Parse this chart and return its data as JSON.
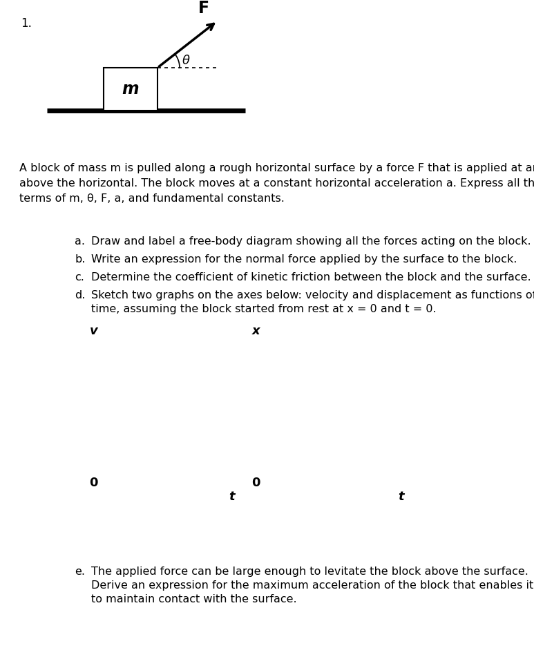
{
  "title_number": "1.",
  "bg_color": "#ffffff",
  "force_label": "F",
  "angle_label": "θ",
  "mass_label": "m",
  "para_line1": "A block of mass m is pulled along a rough horizontal surface by a force F that is applied at an angle θ",
  "para_line2": "above the horizontal. The block moves at a constant horizontal acceleration a. Express all the results in",
  "para_line3": "terms of m, θ, F, a, and fundamental constants.",
  "item_a_letter": "a.",
  "item_a_text": "Draw and label a free-body diagram showing all the forces acting on the block.",
  "item_b_letter": "b.",
  "item_b_text": "Write an expression for the normal force applied by the surface to the block.",
  "item_c_letter": "c.",
  "item_c_text": "Determine the coefficient of kinetic friction between the block and the surface.",
  "item_d_letter": "d.",
  "item_d_line1": "Sketch two graphs on the axes below: velocity and displacement as functions of",
  "item_d_line2": "time, assuming the block started from rest at x = 0 and t = 0.",
  "item_e_letter": "e.",
  "item_e_line1": "The applied force can be large enough to levitate the block above the surface.",
  "item_e_line2": "Derive an expression for the maximum acceleration of the block that enables it",
  "item_e_line3": "to maintain contact with the surface.",
  "graph1_ylabel": "v",
  "graph1_xlabel": "t",
  "graph2_ylabel": "x",
  "graph2_xlabel": "t",
  "origin_label": "0"
}
